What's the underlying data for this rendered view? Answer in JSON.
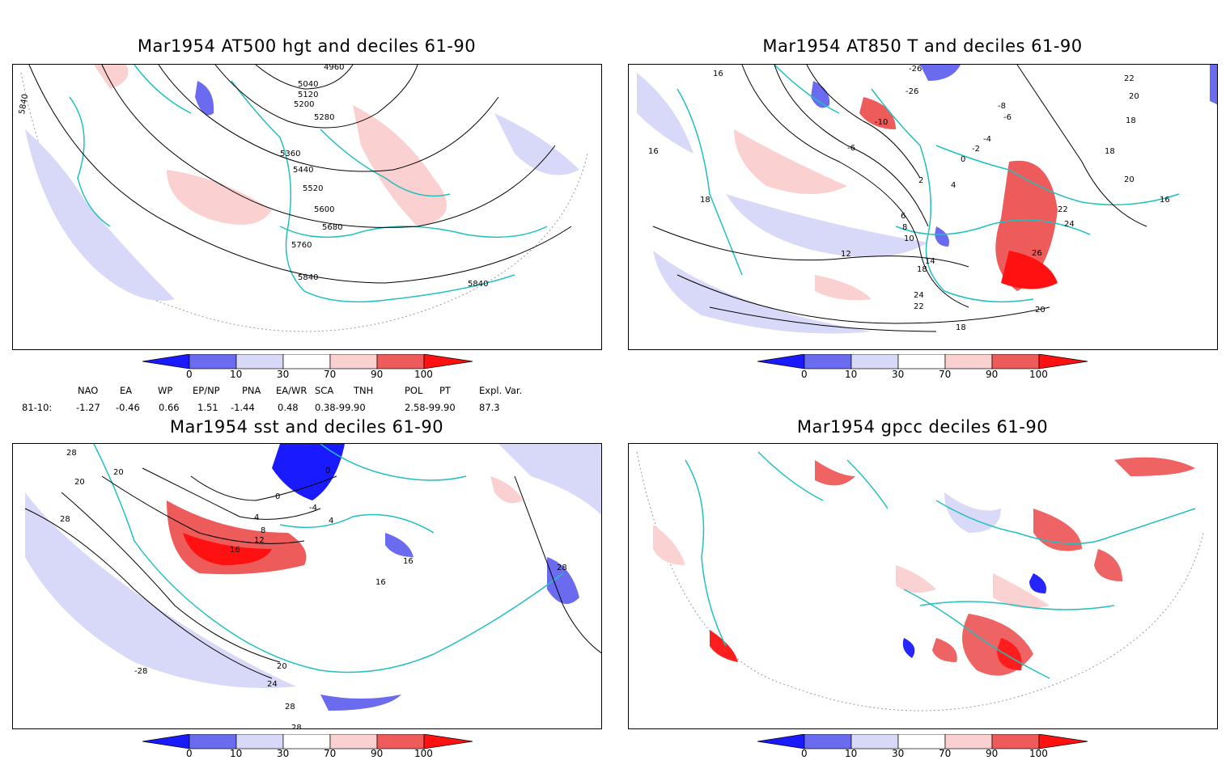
{
  "panels": [
    {
      "id": "p1",
      "title": "Mar1954 AT500 hgt and deciles 61-90",
      "contour_labels": [
        "4960",
        "5040",
        "5120",
        "5200",
        "5280",
        "5360",
        "5440",
        "5520",
        "5600",
        "5680",
        "5760",
        "5840",
        "5840",
        "5840"
      ]
    },
    {
      "id": "p2",
      "title": "Mar1954 AT850 T and deciles 61-90",
      "contour_labels": [
        "-26",
        "-26",
        "-10",
        "-8",
        "-6",
        "-6",
        "-4",
        "-2",
        "0",
        "2",
        "4",
        "6",
        "8",
        "10",
        "12",
        "14",
        "16",
        "16",
        "18",
        "18",
        "18",
        "16",
        "18",
        "20",
        "22",
        "22",
        "20",
        "24",
        "26",
        "24",
        "22",
        "20",
        "18"
      ]
    },
    {
      "id": "p3",
      "title": "Mar1954 sst and deciles 61-90",
      "contour_labels": [
        "28",
        "20",
        "20",
        "28",
        "0",
        "0",
        "4",
        "4",
        "8",
        "12",
        "16",
        "16",
        "-4",
        "16",
        "28",
        "-28",
        "20",
        "24",
        "28",
        "28"
      ]
    },
    {
      "id": "p4",
      "title": "Mar1954 gpcc deciles 61-90",
      "contour_labels": []
    }
  ],
  "colorbar": {
    "labels": [
      "0",
      "10",
      "30",
      "70",
      "90",
      "100"
    ],
    "colors": [
      "#1a1aff",
      "#6b6bf0",
      "#d8d8f8",
      "#ffffff",
      "#fbd0d0",
      "#ee5b5b",
      "#ff1111"
    ]
  },
  "indices": {
    "headers": [
      "NAO",
      "EA",
      "WP",
      "EP/NP",
      "PNA",
      "EA/WR",
      "SCA",
      "TNH",
      "POL",
      "PT",
      "Expl. Var."
    ],
    "row_label": "81-10:",
    "values": [
      "-1.27",
      "-0.46",
      "0.66",
      "1.51",
      "-1.44",
      "0.48",
      "0.38-99.90",
      "",
      "2.58-99.90",
      "",
      "87.3"
    ]
  },
  "colors": {
    "coast": "#20c0c0",
    "contour": "#000000",
    "grid": "#999999"
  }
}
